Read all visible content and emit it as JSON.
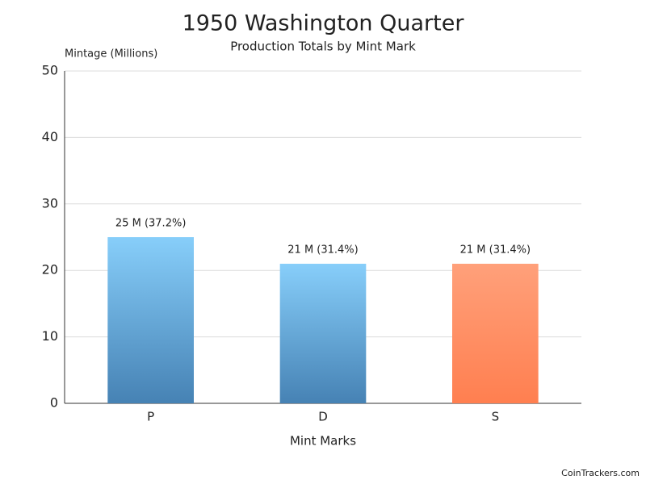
{
  "chart_data": {
    "type": "bar",
    "title": "1950 Washington Quarter",
    "subtitle": "Production Totals by Mint Mark",
    "y_label": "Mintage (Millions)",
    "x_label": "Mint Marks",
    "categories": [
      "P",
      "D",
      "S"
    ],
    "values": [
      25,
      21,
      21
    ],
    "value_labels": [
      "25 M (37.2%)",
      "21 M (31.4%)",
      "21 M (31.4%)"
    ],
    "colors": [
      [
        "#87cefa",
        "#4682b4"
      ],
      [
        "#87cefa",
        "#4682b4"
      ],
      [
        "#ffa07a",
        "#ff7f50"
      ]
    ],
    "ylim": [
      0,
      50
    ],
    "yticks": [
      0,
      10,
      20,
      30,
      40,
      50
    ],
    "grid": true,
    "source": "CoinTrackers.com"
  }
}
